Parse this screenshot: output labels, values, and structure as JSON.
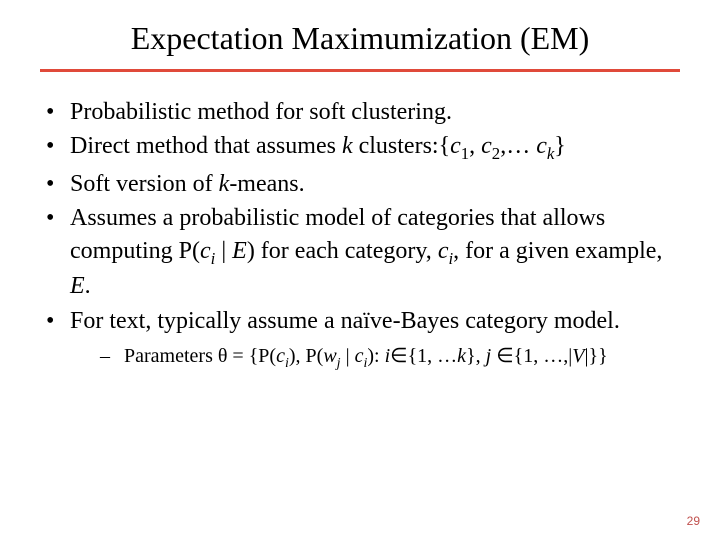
{
  "title": "Expectation Maximumization (EM)",
  "rule_color": "#e04a3a",
  "bullets": {
    "b1": "Probabilistic method for soft clustering.",
    "b2_pre": "Direct method that assumes ",
    "b2_k": "k",
    "b2_mid": " clusters:{",
    "b2_c": "c",
    "b2_s1": "1",
    "b2_comma1": ", ",
    "b2_s2": "2",
    "b2_comma2": ",… ",
    "b2_sk": "k",
    "b2_end": "}",
    "b3_pre": "Soft version of ",
    "b3_k": "k",
    "b3_post": "-means.",
    "b4_l1_pre": "Assumes a probabilistic model of categories that allows computing P(",
    "b4_ci_c": "c",
    "b4_ci_i": "i",
    "b4_l1_mid": " | ",
    "b4_E": "E",
    "b4_l1_mid2": ") for each category, ",
    "b4_l1_mid3": ", for a given example, ",
    "b4_l1_end": ".",
    "b5": "For text, typically assume a naïve-Bayes category model."
  },
  "subbullet": {
    "pre": "Parameters θ = {P(",
    "c": "c",
    "i": "i",
    "mid1": "), P(",
    "w": "w",
    "j": "j",
    "mid2": " | ",
    "mid3": "): ",
    "ivar": "i",
    "in1": "∈{1, …",
    "kvar": "k",
    "mid4": "}, ",
    "jvar": "j ",
    "in2": "∈{1, …,|",
    "V": "V",
    "end": "|}}"
  },
  "pagenum": "29",
  "pagenum_color": "#c0504d"
}
